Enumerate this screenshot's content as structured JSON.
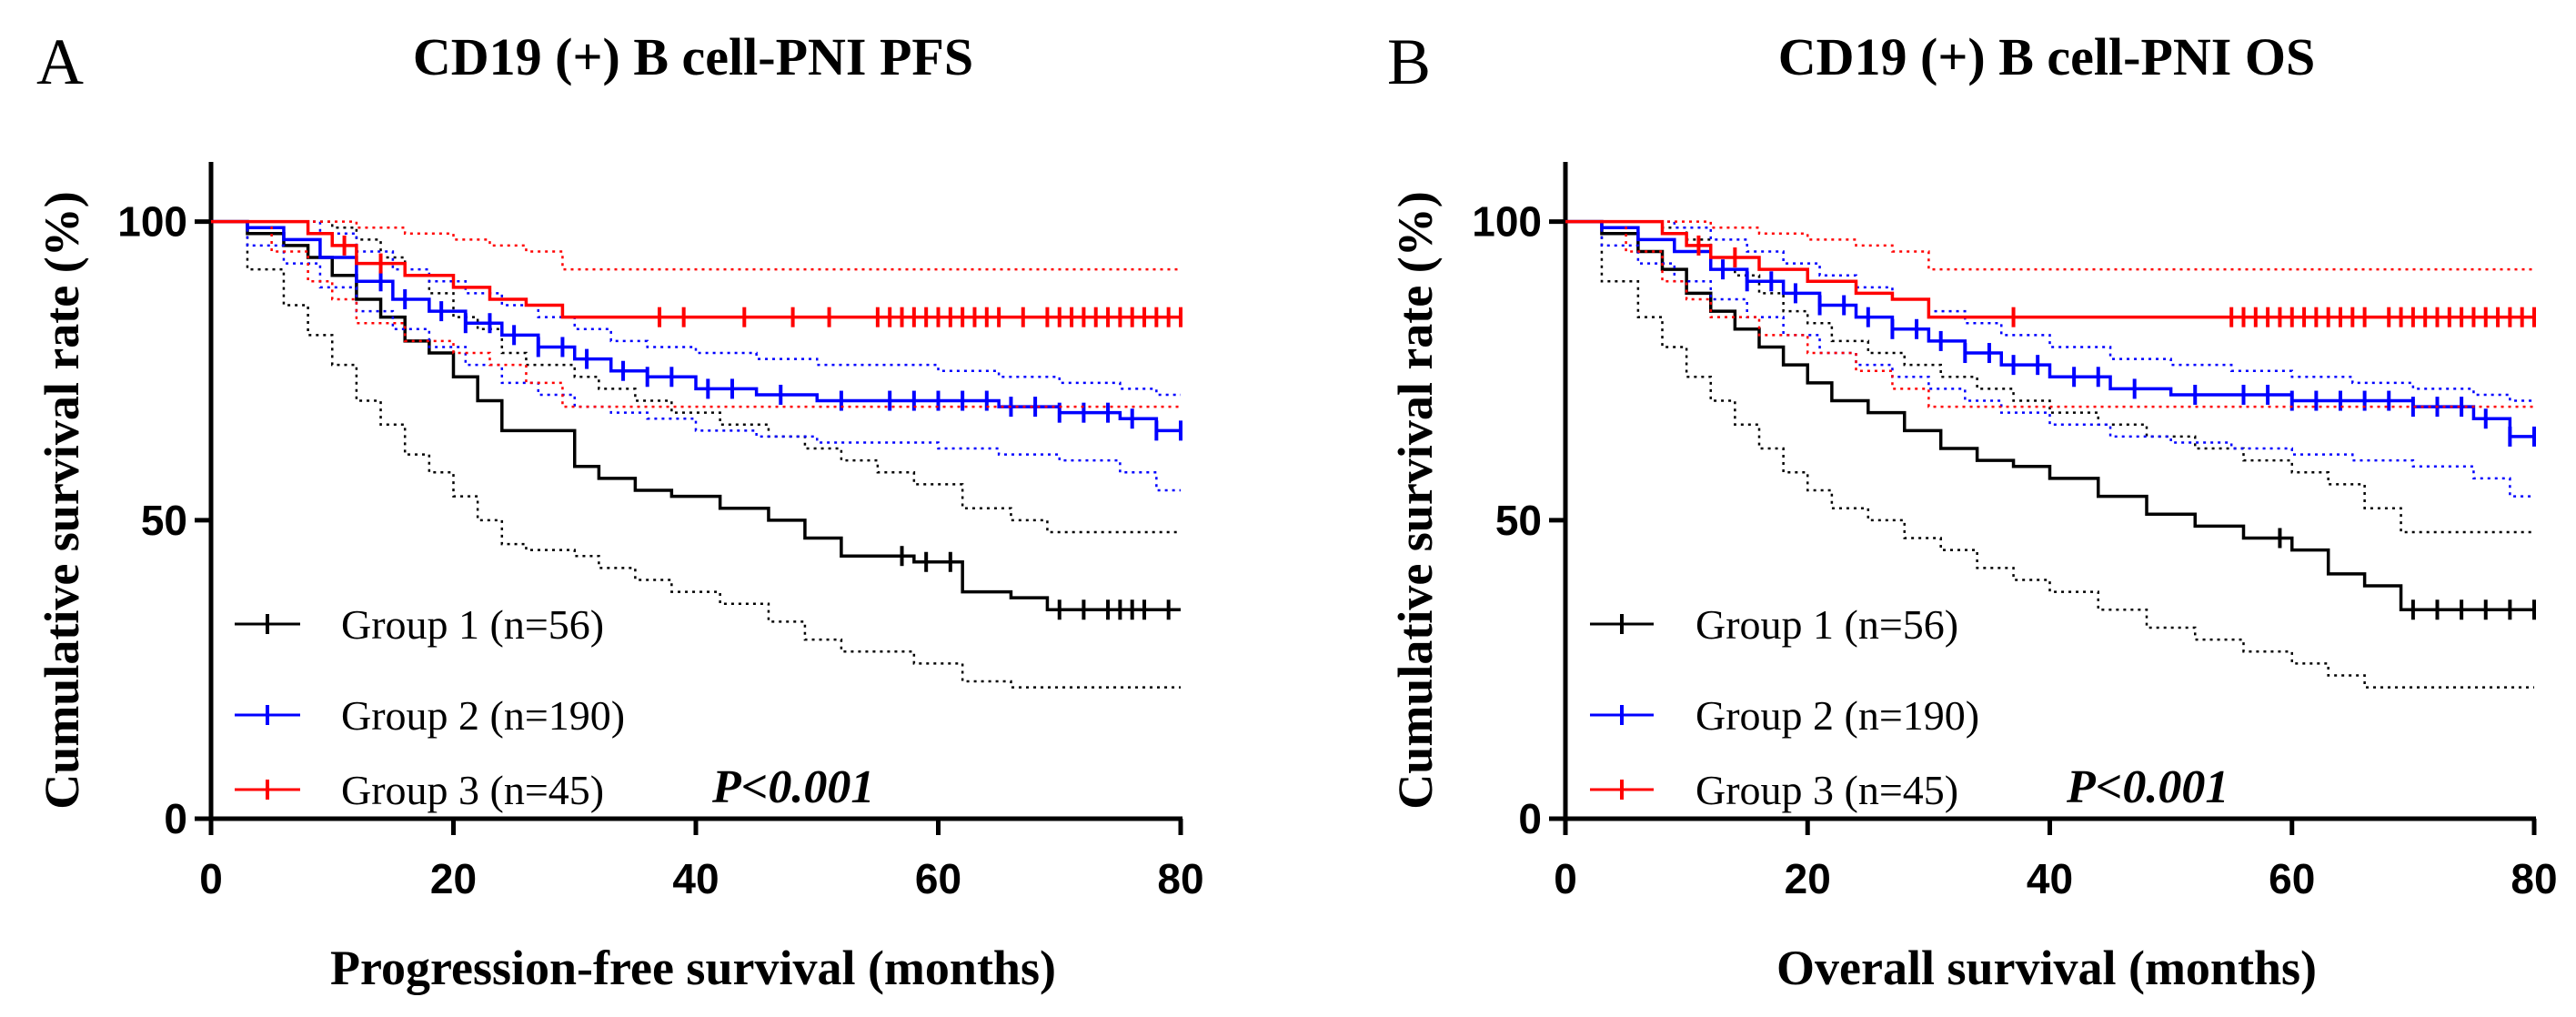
{
  "chart_data": [
    {
      "type": "line",
      "panel": "A",
      "title": "CD19 (+) B cell-PNI PFS",
      "xlabel": "Progression-free survival (months)",
      "ylabel": "Cumulative survival rate (%)",
      "xlim": [
        0,
        80
      ],
      "ylim": [
        0,
        110
      ],
      "xticks": [
        0,
        20,
        40,
        60,
        80
      ],
      "yticks": [
        0,
        50,
        100
      ],
      "annotation": "P<0.001",
      "series": [
        {
          "name": "Group 1 (n=56)",
          "color": "#000000",
          "x": [
            0,
            3,
            6,
            8,
            10,
            12,
            14,
            16,
            18,
            20,
            22,
            24,
            26,
            30,
            32,
            35,
            38,
            42,
            46,
            49,
            52,
            55,
            58,
            62,
            66,
            69,
            75,
            80
          ],
          "y": [
            100,
            98,
            96,
            94,
            91,
            87,
            84,
            80,
            78,
            74,
            70,
            65,
            65,
            59,
            57,
            55,
            54,
            52,
            50,
            47,
            44,
            44,
            43,
            38,
            37,
            35,
            35,
            35
          ],
          "lower_ci": [
            100,
            92,
            86,
            81,
            76,
            70,
            66,
            61,
            58,
            54,
            50,
            46,
            45,
            44,
            42,
            40,
            38,
            36,
            33,
            30,
            28,
            28,
            26,
            23,
            22,
            22,
            22,
            22
          ],
          "upper_ci": [
            100,
            100,
            100,
            100,
            99,
            97,
            94,
            91,
            88,
            84,
            82,
            78,
            76,
            74,
            72,
            70,
            68,
            66,
            64,
            62,
            60,
            58,
            56,
            52,
            50,
            48,
            48,
            48
          ],
          "censor_x": [
            57,
            59,
            61,
            70,
            72,
            74,
            75,
            76,
            77,
            79
          ]
        },
        {
          "name": "Group 2  (n=190)",
          "color": "#0000ff",
          "x": [
            0,
            3,
            6,
            9,
            12,
            15,
            18,
            21,
            24,
            27,
            30,
            33,
            36,
            40,
            45,
            50,
            55,
            60,
            65,
            70,
            75,
            78,
            80
          ],
          "y": [
            100,
            99,
            97,
            94,
            90,
            87,
            85,
            83,
            81,
            79,
            77,
            75,
            74,
            72,
            71,
            70,
            70,
            70,
            69,
            68,
            67,
            65,
            65
          ],
          "lower_ci": [
            100,
            96,
            93,
            89,
            85,
            82,
            79,
            76,
            73,
            71,
            69,
            68,
            67,
            65,
            64,
            63,
            63,
            62,
            61,
            60,
            58,
            55,
            55
          ],
          "upper_ci": [
            100,
            100,
            100,
            98,
            95,
            92,
            90,
            88,
            86,
            84,
            82,
            80,
            79,
            78,
            77,
            76,
            76,
            75,
            74,
            73,
            72,
            71,
            71
          ],
          "censor_x": [
            14,
            16,
            19,
            21,
            23,
            25,
            27,
            29,
            31,
            34,
            36,
            38,
            41,
            43,
            47,
            52,
            56,
            58,
            60,
            62,
            64,
            66,
            68,
            70,
            72,
            74,
            76,
            78,
            80
          ]
        },
        {
          "name": "Group 3 (n=45)",
          "color": "#ff0000",
          "x": [
            0,
            5,
            8,
            10,
            12,
            16,
            20,
            23,
            26,
            29,
            40,
            60,
            80
          ],
          "y": [
            100,
            100,
            98,
            96,
            93,
            91,
            89,
            87,
            86,
            84,
            84,
            84,
            84
          ],
          "lower_ci": [
            100,
            95,
            90,
            87,
            83,
            80,
            78,
            76,
            73,
            69,
            69,
            69,
            69
          ],
          "upper_ci": [
            100,
            100,
            100,
            100,
            99,
            98,
            97,
            96,
            95,
            92,
            92,
            92,
            92
          ],
          "censor_x": [
            11,
            14,
            37,
            39,
            44,
            48,
            51,
            55,
            56,
            57,
            58,
            59,
            60,
            61,
            62,
            63,
            64,
            65,
            67,
            69,
            70,
            71,
            72,
            73,
            74,
            75,
            76,
            77,
            78,
            79,
            80
          ]
        }
      ]
    },
    {
      "type": "line",
      "panel": "B",
      "title": "CD19 (+) B cell-PNI OS",
      "xlabel": "Overall survival (months)",
      "ylabel": "Cumulative survival rate (%)",
      "xlim": [
        0,
        80
      ],
      "ylim": [
        0,
        110
      ],
      "xticks": [
        0,
        20,
        40,
        60,
        80
      ],
      "yticks": [
        0,
        50,
        100
      ],
      "annotation": "P<0.001",
      "series": [
        {
          "name": "Group 1 (n=56)",
          "color": "#000000",
          "x": [
            0,
            3,
            6,
            8,
            10,
            12,
            14,
            16,
            18,
            20,
            22,
            25,
            28,
            31,
            34,
            37,
            40,
            44,
            48,
            52,
            56,
            60,
            63,
            66,
            69,
            75,
            80
          ],
          "y": [
            100,
            98,
            95,
            92,
            88,
            85,
            82,
            79,
            76,
            73,
            70,
            68,
            65,
            62,
            60,
            59,
            57,
            54,
            51,
            49,
            47,
            45,
            41,
            39,
            35,
            35,
            35
          ],
          "lower_ci": [
            100,
            90,
            84,
            79,
            74,
            70,
            66,
            62,
            58,
            55,
            52,
            50,
            47,
            45,
            42,
            40,
            38,
            35,
            32,
            30,
            28,
            26,
            24,
            22,
            22,
            22,
            22
          ],
          "upper_ci": [
            100,
            100,
            100,
            99,
            97,
            94,
            91,
            88,
            85,
            83,
            80,
            78,
            76,
            74,
            72,
            70,
            68,
            66,
            64,
            62,
            60,
            58,
            56,
            52,
            48,
            48,
            48
          ],
          "censor_x": [
            59,
            70,
            72,
            74,
            76,
            78,
            80
          ]
        },
        {
          "name": "Group 2  (n=190)",
          "color": "#0000ff",
          "x": [
            0,
            3,
            6,
            9,
            12,
            15,
            18,
            21,
            24,
            27,
            30,
            33,
            36,
            40,
            45,
            50,
            55,
            60,
            65,
            70,
            75,
            78,
            80
          ],
          "y": [
            100,
            99,
            97,
            95,
            92,
            90,
            88,
            86,
            84,
            82,
            80,
            78,
            76,
            74,
            72,
            71,
            71,
            70,
            70,
            69,
            67,
            64,
            64
          ],
          "lower_ci": [
            100,
            96,
            93,
            90,
            87,
            84,
            81,
            78,
            76,
            74,
            72,
            70,
            68,
            66,
            64,
            63,
            62,
            61,
            60,
            59,
            57,
            54,
            54
          ],
          "upper_ci": [
            100,
            100,
            100,
            99,
            97,
            95,
            93,
            91,
            89,
            87,
            85,
            83,
            81,
            79,
            77,
            76,
            75,
            74,
            73,
            72,
            71,
            70,
            70
          ],
          "censor_x": [
            13,
            15,
            17,
            19,
            21,
            23,
            25,
            27,
            29,
            31,
            33,
            35,
            37,
            39,
            42,
            44,
            47,
            52,
            56,
            58,
            60,
            62,
            64,
            66,
            68,
            70,
            72,
            74,
            76,
            78,
            80
          ]
        },
        {
          "name": "Group 3 (n=45)",
          "color": "#ff0000",
          "x": [
            0,
            5,
            8,
            10,
            12,
            16,
            20,
            24,
            27,
            30,
            40,
            60,
            80
          ],
          "y": [
            100,
            100,
            98,
            96,
            94,
            92,
            90,
            88,
            87,
            84,
            84,
            84,
            84
          ],
          "lower_ci": [
            100,
            95,
            90,
            87,
            84,
            81,
            78,
            75,
            72,
            69,
            69,
            69,
            69
          ],
          "upper_ci": [
            100,
            100,
            100,
            100,
            99,
            98,
            97,
            96,
            95,
            92,
            92,
            92,
            92
          ],
          "censor_x": [
            11,
            14,
            37,
            55,
            56,
            57,
            58,
            59,
            60,
            61,
            62,
            63,
            64,
            65,
            66,
            68,
            69,
            70,
            71,
            72,
            73,
            74,
            75,
            76,
            77,
            78,
            79,
            80
          ]
        }
      ]
    }
  ]
}
